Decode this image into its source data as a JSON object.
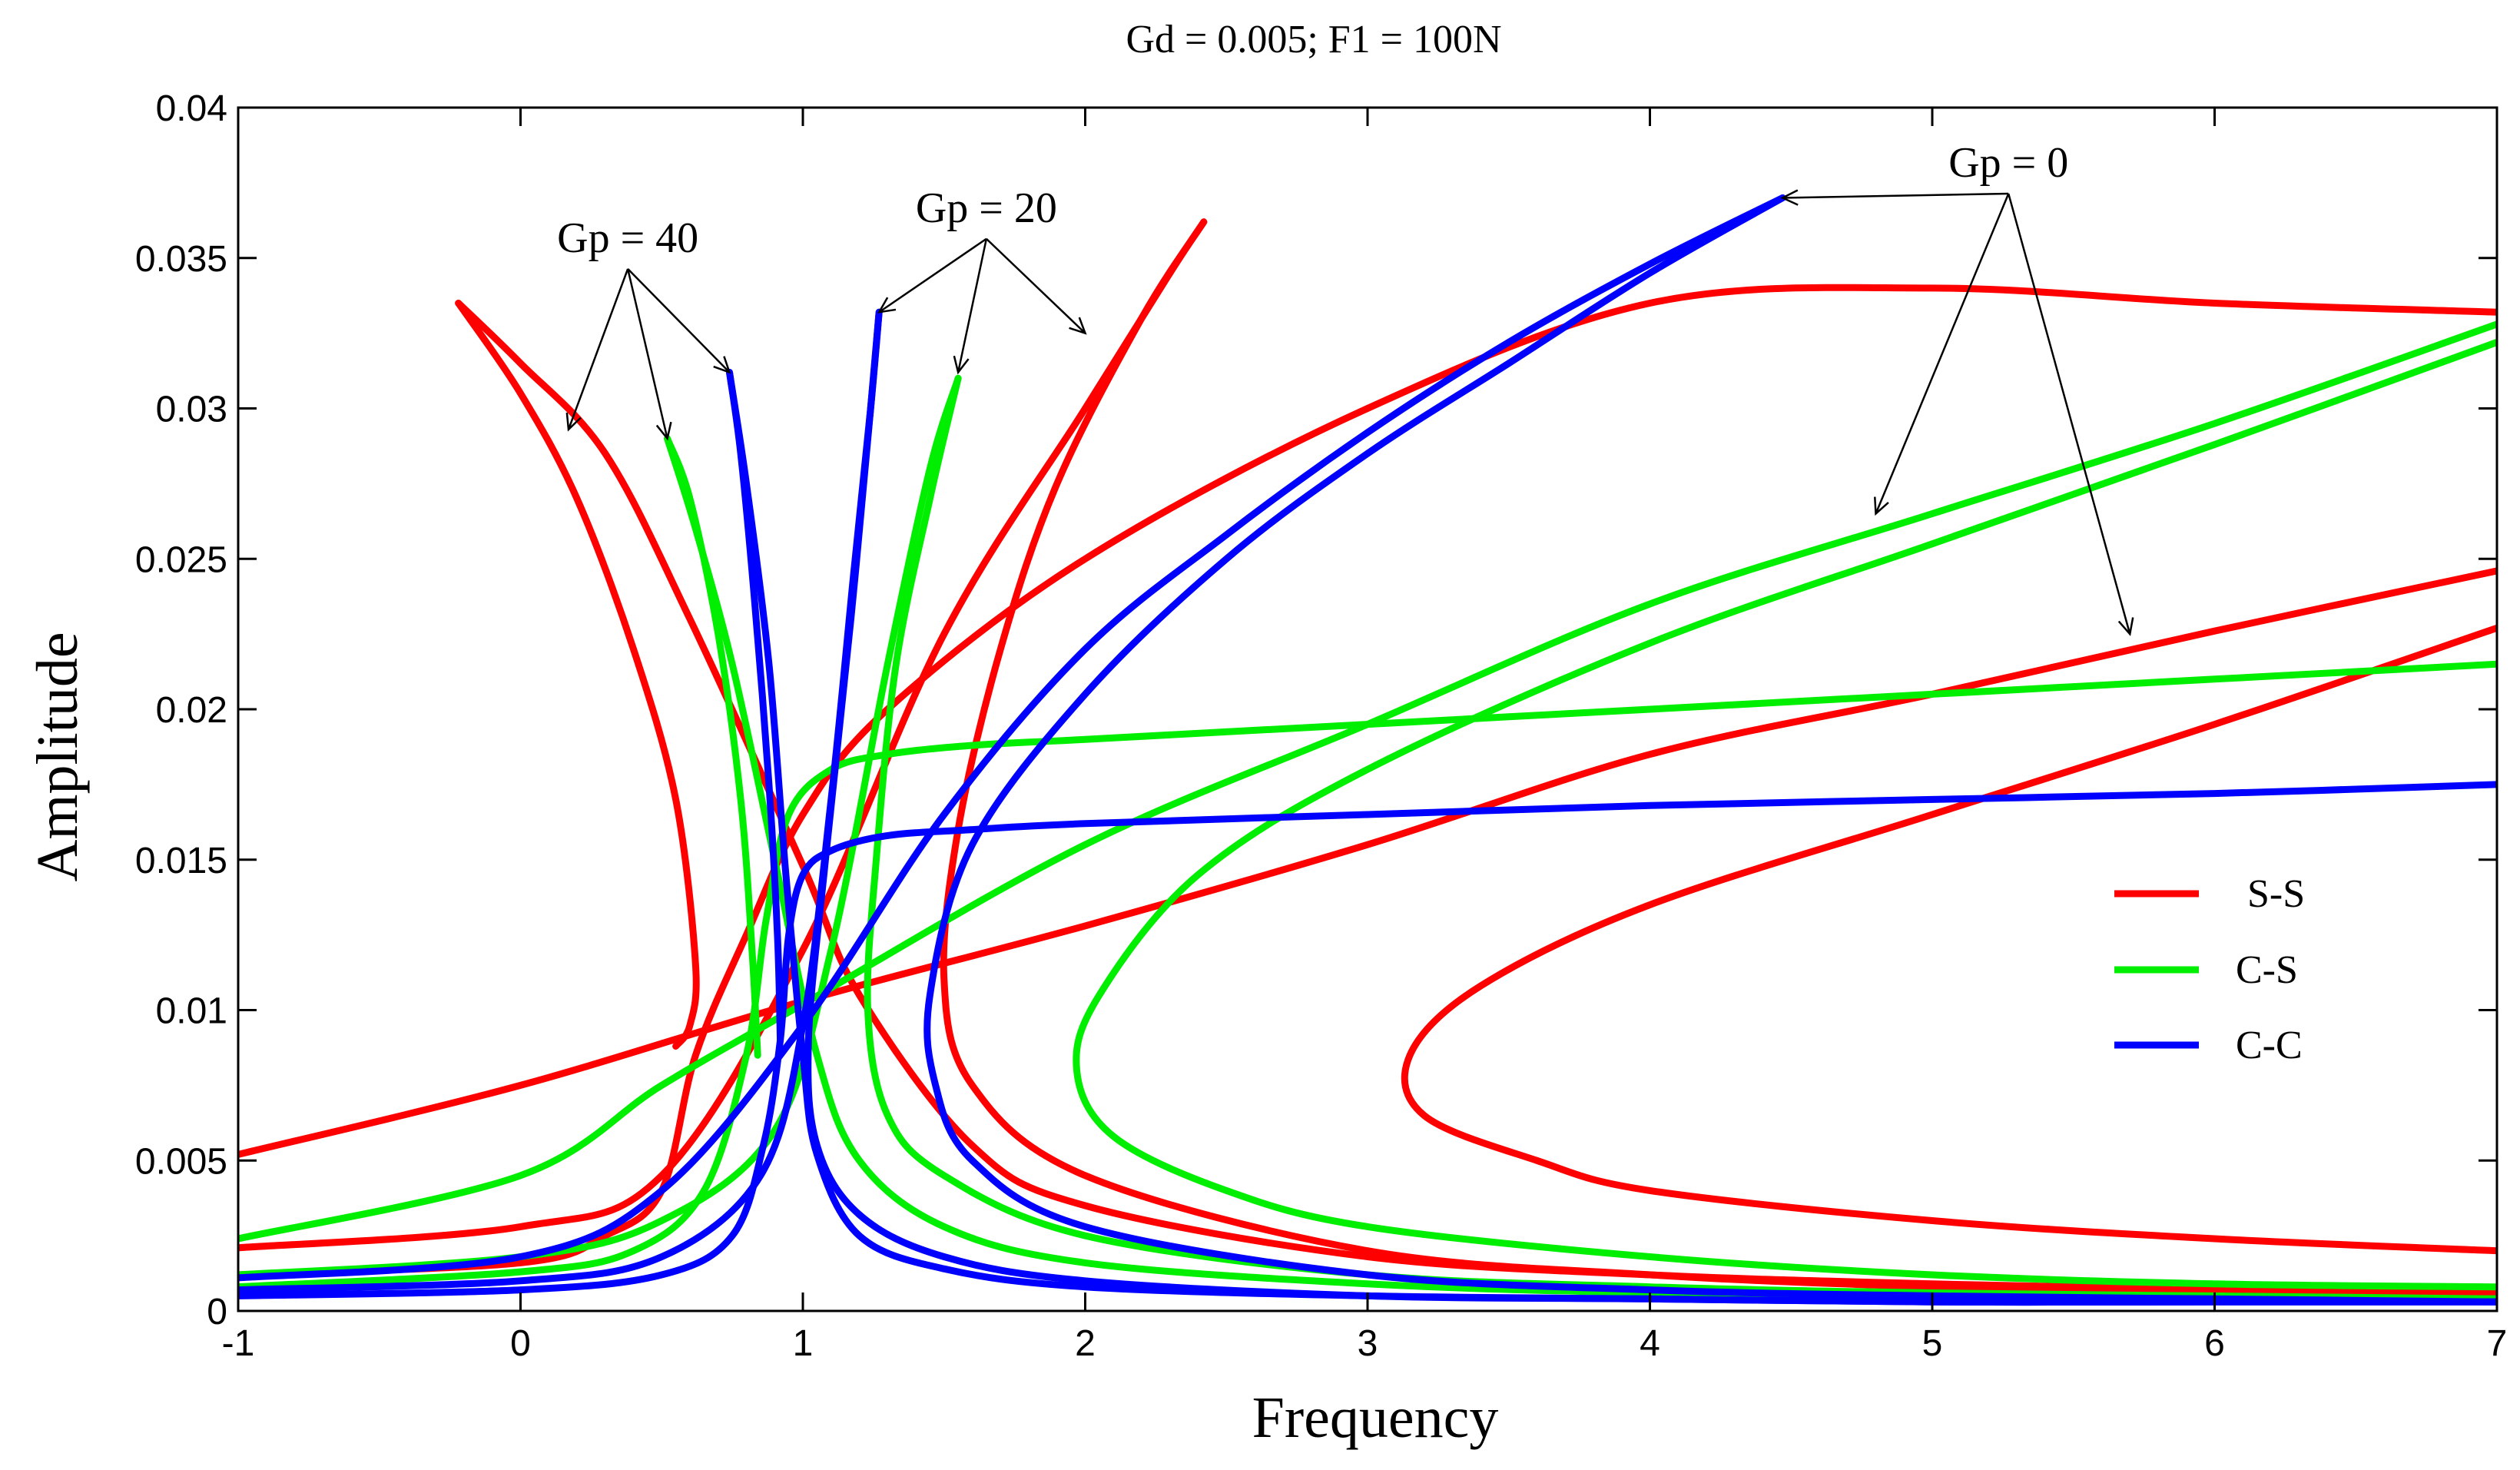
{
  "chart_data": {
    "type": "line",
    "title": "Gd = 0.005; F1 = 100N",
    "xlabel": "Frequency",
    "ylabel": "Amplitude",
    "xlim": [
      -1,
      7
    ],
    "ylim": [
      0,
      0.04
    ],
    "xticks": [
      -1,
      0,
      1,
      2,
      3,
      4,
      5,
      6,
      7
    ],
    "yticks": [
      0,
      0.005,
      0.01,
      0.015,
      0.02,
      0.025,
      0.03,
      0.035,
      0.04
    ],
    "xtick_labels": [
      "-1",
      "0",
      "1",
      "2",
      "3",
      "4",
      "5",
      "6",
      "7"
    ],
    "ytick_labels": [
      "0",
      "0.005",
      "0.01",
      "0.015",
      "0.02",
      "0.025",
      "0.03",
      "0.035",
      "0.04"
    ],
    "grid": false,
    "legend_position": "right",
    "colors": {
      "S-S": "#ff0000",
      "C-S": "#00ee00",
      "C-C": "#0000ff"
    },
    "legend": [
      "S-S",
      "C-S",
      "C-C"
    ],
    "series": [
      {
        "name": "S-S Gp=0 upper",
        "group": "S-S",
        "x": [
          -1,
          0,
          1,
          2,
          3,
          4,
          5,
          6,
          7
        ],
        "y": [
          0.0052,
          0.0075,
          0.0103,
          0.0128,
          0.0155,
          0.0185,
          0.0205,
          0.0226,
          0.0246
        ]
      },
      {
        "name": "S-S Gp=0 lower",
        "group": "S-S",
        "x": [
          7,
          6,
          5,
          4,
          3.4,
          3.15,
          3.2,
          3.6,
          4,
          5,
          6,
          7
        ],
        "y": [
          0.0227,
          0.0195,
          0.0165,
          0.0135,
          0.0108,
          0.0085,
          0.0065,
          0.005,
          0.004,
          0.003,
          0.0024,
          0.002
        ]
      },
      {
        "name": "S-S Gp=20 upper",
        "group": "S-S",
        "x": [
          -1,
          0,
          0.5,
          1,
          1.5,
          2,
          2.3,
          2.42
        ],
        "y": [
          0.0021,
          0.0028,
          0.0045,
          0.012,
          0.0225,
          0.03,
          0.0345,
          0.0362
        ]
      },
      {
        "name": "S-S Gp=20 lower",
        "group": "S-S",
        "x": [
          2.42,
          2.2,
          1.9,
          1.7,
          1.55,
          1.5,
          1.6,
          2,
          3,
          4,
          5,
          6,
          7
        ],
        "y": [
          0.0362,
          0.033,
          0.0275,
          0.022,
          0.016,
          0.011,
          0.0075,
          0.0045,
          0.002,
          0.0012,
          0.0008,
          0.0006,
          0.0005
        ]
      },
      {
        "name": "S-S Gp=40 upper",
        "group": "S-S",
        "x": [
          -1,
          0,
          0.3,
          0.5,
          0.62,
          0.8,
          1,
          1.3,
          2,
          3,
          4,
          5,
          6,
          7
        ],
        "y": [
          0.0012,
          0.0016,
          0.0025,
          0.004,
          0.0085,
          0.0125,
          0.0165,
          0.02,
          0.025,
          0.03,
          0.0335,
          0.034,
          0.0335,
          0.0332
        ]
      },
      {
        "name": "S-S Gp=40 loop",
        "group": "S-S",
        "x": [
          -0.22,
          0,
          0.2,
          0.4,
          0.55,
          0.62,
          0.6,
          0.55
        ],
        "y": [
          0.0335,
          0.0305,
          0.027,
          0.022,
          0.017,
          0.0115,
          0.0095,
          0.0088
        ]
      },
      {
        "name": "S-S Gp=40 lower",
        "group": "S-S",
        "x": [
          -0.22,
          0,
          0.3,
          0.6,
          1,
          1.2,
          1.6,
          2,
          3,
          4,
          5,
          6,
          7
        ],
        "y": [
          0.0335,
          0.0315,
          0.0285,
          0.023,
          0.0148,
          0.0105,
          0.0055,
          0.0035,
          0.0018,
          0.0012,
          0.0009,
          0.0007,
          0.0006
        ]
      },
      {
        "name": "C-S Gp=0 upper",
        "group": "C-S",
        "x": [
          -1,
          0,
          0.5,
          1,
          2,
          3,
          4,
          5,
          6,
          7
        ],
        "y": [
          0.0024,
          0.0045,
          0.0075,
          0.0102,
          0.0155,
          0.0195,
          0.0235,
          0.0265,
          0.0295,
          0.0328
        ]
      },
      {
        "name": "C-S Gp=0 lower",
        "group": "C-S",
        "x": [
          7,
          6,
          5,
          4,
          3,
          2.4,
          2.05,
          1.97,
          2.1,
          2.5,
          3,
          4,
          5,
          6,
          7
        ],
        "y": [
          0.0322,
          0.0288,
          0.0255,
          0.0222,
          0.018,
          0.0145,
          0.0105,
          0.008,
          0.0058,
          0.004,
          0.0028,
          0.0018,
          0.0012,
          0.0009,
          0.0008
        ]
      },
      {
        "name": "C-S Gp=20 upper",
        "group": "C-S",
        "x": [
          -1,
          0,
          0.5,
          0.9,
          1.1,
          1.3,
          1.45,
          1.55
        ],
        "y": [
          0.0012,
          0.0018,
          0.003,
          0.006,
          0.012,
          0.0215,
          0.028,
          0.031
        ]
      },
      {
        "name": "C-S Gp=20 lower",
        "group": "C-S",
        "x": [
          1.55,
          1.45,
          1.33,
          1.26,
          1.23,
          1.3,
          1.5,
          2,
          3,
          4,
          5,
          6,
          7
        ],
        "y": [
          0.031,
          0.027,
          0.0215,
          0.015,
          0.01,
          0.0065,
          0.0045,
          0.0025,
          0.0012,
          0.0008,
          0.0006,
          0.0005,
          0.0004
        ]
      },
      {
        "name": "C-S Gp=40 upper",
        "group": "C-S",
        "x": [
          -1,
          0,
          0.4,
          0.65,
          0.8,
          0.87,
          0.95,
          1.1,
          1.3,
          1.6,
          2,
          3,
          4,
          5,
          6,
          7
        ],
        "y": [
          0.0008,
          0.0013,
          0.002,
          0.004,
          0.0085,
          0.013,
          0.0165,
          0.018,
          0.0185,
          0.0188,
          0.019,
          0.0195,
          0.02,
          0.0205,
          0.021,
          0.0215
        ]
      },
      {
        "name": "C-S Gp=40 loop",
        "group": "C-S",
        "x": [
          0.52,
          0.6,
          0.7,
          0.78,
          0.82,
          0.84
        ],
        "y": [
          0.029,
          0.027,
          0.0225,
          0.017,
          0.012,
          0.0085
        ]
      },
      {
        "name": "C-S Gp=40 lower",
        "group": "C-S",
        "x": [
          0.52,
          0.62,
          0.75,
          0.9,
          1.05,
          1.2,
          1.5,
          2,
          3,
          4,
          5,
          6,
          7
        ],
        "y": [
          0.029,
          0.026,
          0.0215,
          0.015,
          0.0085,
          0.005,
          0.0028,
          0.0016,
          0.0009,
          0.0006,
          0.0005,
          0.0004,
          0.0004
        ]
      },
      {
        "name": "C-C Gp=0 upper",
        "group": "C-C",
        "x": [
          -1,
          0,
          0.5,
          1,
          1.5,
          2,
          2.5,
          3,
          3.5,
          4,
          4.47
        ],
        "y": [
          0.0011,
          0.0018,
          0.004,
          0.0095,
          0.0165,
          0.022,
          0.0258,
          0.0292,
          0.0322,
          0.0348,
          0.037
        ]
      },
      {
        "name": "C-C Gp=0 lower",
        "group": "C-C",
        "x": [
          4.47,
          4,
          3.5,
          3,
          2.5,
          2,
          1.6,
          1.45,
          1.47,
          1.6,
          2,
          3,
          4,
          5,
          6,
          7
        ],
        "y": [
          0.037,
          0.0345,
          0.0315,
          0.0285,
          0.025,
          0.0205,
          0.0155,
          0.0105,
          0.0075,
          0.005,
          0.0028,
          0.0012,
          0.0007,
          0.0005,
          0.0004,
          0.0003
        ]
      },
      {
        "name": "C-C Gp=20 upper",
        "group": "C-C",
        "x": [
          -1,
          0,
          0.5,
          0.85,
          1,
          1.1,
          1.18,
          1.24,
          1.27
        ],
        "y": [
          0.0007,
          0.001,
          0.0018,
          0.0045,
          0.0095,
          0.017,
          0.0245,
          0.03,
          0.0332
        ]
      },
      {
        "name": "C-C Gp=20 lower",
        "group": "C-C",
        "x": [
          1.27,
          1.24,
          1.17,
          1.08,
          1.02,
          1.05,
          1.2,
          1.5,
          2,
          3,
          4,
          5,
          6,
          7
        ],
        "y": [
          0.0332,
          0.03,
          0.023,
          0.015,
          0.009,
          0.0055,
          0.0032,
          0.0018,
          0.001,
          0.0005,
          0.0004,
          0.0003,
          0.0003,
          0.0003
        ]
      },
      {
        "name": "C-C Gp=40 upper",
        "group": "C-C",
        "x": [
          -1,
          0,
          0.5,
          0.75,
          0.86,
          0.92,
          0.95,
          1,
          1.1,
          1.3,
          1.6,
          2,
          3,
          4,
          5,
          6,
          7
        ],
        "y": [
          0.0005,
          0.0007,
          0.0012,
          0.0025,
          0.0055,
          0.009,
          0.0125,
          0.0145,
          0.0153,
          0.0158,
          0.016,
          0.0162,
          0.0165,
          0.0168,
          0.017,
          0.0172,
          0.0175
        ]
      },
      {
        "name": "C-C Gp=40 peak",
        "group": "C-C",
        "x": [
          0.74,
          0.78,
          0.83,
          0.88,
          0.91,
          0.92
        ],
        "y": [
          0.0312,
          0.0285,
          0.0235,
          0.0175,
          0.0125,
          0.009
        ]
      },
      {
        "name": "C-C Gp=40 lower",
        "group": "C-C",
        "x": [
          0.74,
          0.8,
          0.88,
          0.94,
          1,
          1.05,
          1.2,
          1.5,
          2,
          3,
          4,
          5,
          6,
          7
        ],
        "y": [
          0.0312,
          0.0275,
          0.0215,
          0.0145,
          0.0085,
          0.0052,
          0.0025,
          0.0014,
          0.0008,
          0.0005,
          0.0004,
          0.0003,
          0.0003,
          0.0003
        ]
      }
    ],
    "annotations": [
      {
        "text": "Gp = 0",
        "x": 5.27,
        "y": 0.0377,
        "arrows_to": [
          [
            4.47,
            0.037
          ],
          [
            4.8,
            0.0265
          ],
          [
            5.7,
            0.0225
          ]
        ]
      },
      {
        "text": "Gp = 20",
        "x": 1.65,
        "y": 0.0362,
        "arrows_to": [
          [
            1.27,
            0.0332
          ],
          [
            1.55,
            0.0312
          ],
          [
            2.0,
            0.0325
          ]
        ]
      },
      {
        "text": "Gp = 40",
        "x": 0.38,
        "y": 0.0352,
        "arrows_to": [
          [
            0.17,
            0.0293
          ],
          [
            0.52,
            0.029
          ],
          [
            0.74,
            0.0312
          ]
        ]
      }
    ]
  }
}
